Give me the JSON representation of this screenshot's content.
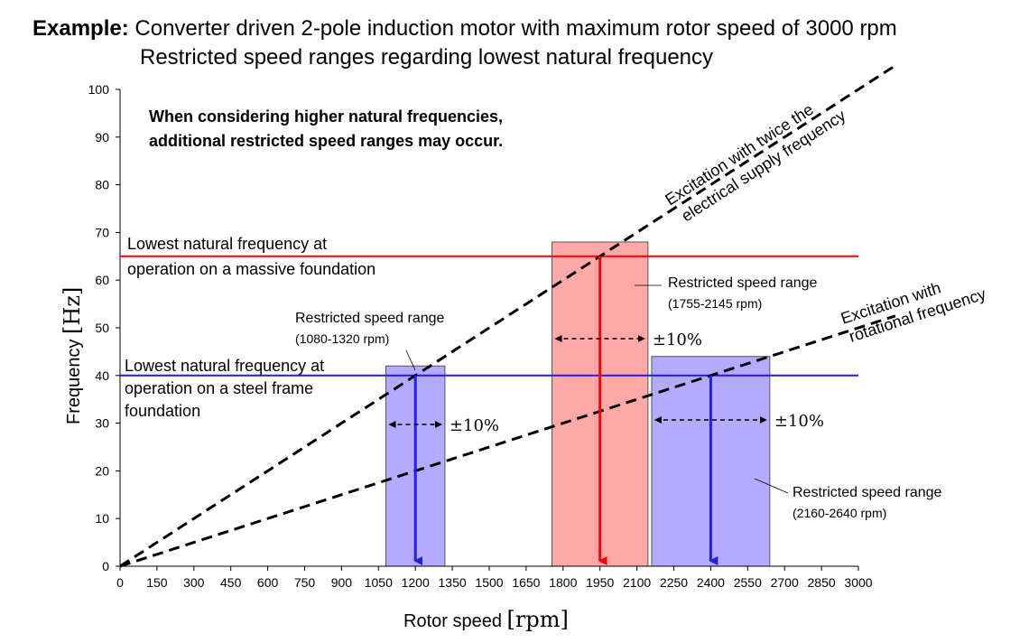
{
  "header": {
    "prefix": "Example:",
    "line1": "Converter driven 2-pole induction motor with maximum rotor speed of 3000 rpm",
    "line2": "Restricted speed ranges regarding lowest natural frequency"
  },
  "chart_data": {
    "type": "line",
    "xlabel_text": "Rotor speed",
    "xlabel_unit": "[rpm]",
    "ylabel_text": "Frequency",
    "ylabel_unit": "[Hz]",
    "xlim": [
      0,
      3000
    ],
    "ylim": [
      0,
      100
    ],
    "x_ticks": [
      "0",
      "150",
      "300",
      "450",
      "600",
      "750",
      "900",
      "1050",
      "1200",
      "1350",
      "1500",
      "1650",
      "1800",
      "1950",
      "2100",
      "2250",
      "2400",
      "2550",
      "2700",
      "2850",
      "3000"
    ],
    "y_ticks": [
      "0",
      "10",
      "20",
      "30",
      "40",
      "50",
      "60",
      "70",
      "80",
      "90",
      "100"
    ],
    "series": [
      {
        "name": "Excitation with twice the electrical supply frequency",
        "x": [
          0,
          3000
        ],
        "y": [
          0,
          100
        ],
        "color": "#000000",
        "style": "dashed"
      },
      {
        "name": "Excitation with rotational frequency",
        "x": [
          0,
          3000
        ],
        "y": [
          0,
          50
        ],
        "color": "#000000",
        "style": "dashed"
      }
    ],
    "series_labels": {
      "twice_line1": "Excitation with twice the",
      "twice_line2": "electrical supply frequency",
      "rot_line1": "Excitation with",
      "rot_line2": "rotational frequency"
    },
    "natural_frequencies": [
      {
        "label_line1": "Lowest natural frequency at",
        "label_line2": "operation on a massive foundation",
        "label_line3": "",
        "value": 65,
        "color": "#ff0000"
      },
      {
        "label_line1": "Lowest natural frequency at",
        "label_line2": "operation on a steel frame",
        "label_line3": "foundation",
        "value": 40,
        "color": "#1a1aff"
      }
    ],
    "restricted_ranges": [
      {
        "label": "Restricted speed range",
        "range_text": "(1080-1320 rpm)",
        "x_start": 1080,
        "x_end": 1320,
        "height": 42,
        "center": 1200,
        "fill": "#b4aaff",
        "arrow_color": "#2020e0",
        "tolerance": "±10%"
      },
      {
        "label": "Restricted speed range",
        "range_text": "(1755-2145 rpm)",
        "x_start": 1755,
        "x_end": 2145,
        "height": 68,
        "center": 1950,
        "fill": "#ffa8a8",
        "arrow_color": "#ff0000",
        "tolerance": "±10%"
      },
      {
        "label": "Restricted speed range",
        "range_text": "(2160-2640 rpm)",
        "x_start": 2160,
        "x_end": 2640,
        "height": 44,
        "center": 2400,
        "fill": "#b4aaff",
        "arrow_color": "#2020e0",
        "tolerance": "±10%"
      }
    ],
    "note_line1": "When considering higher natural frequencies,",
    "note_line2": "additional restricted speed ranges may occur.",
    "grid": false
  }
}
